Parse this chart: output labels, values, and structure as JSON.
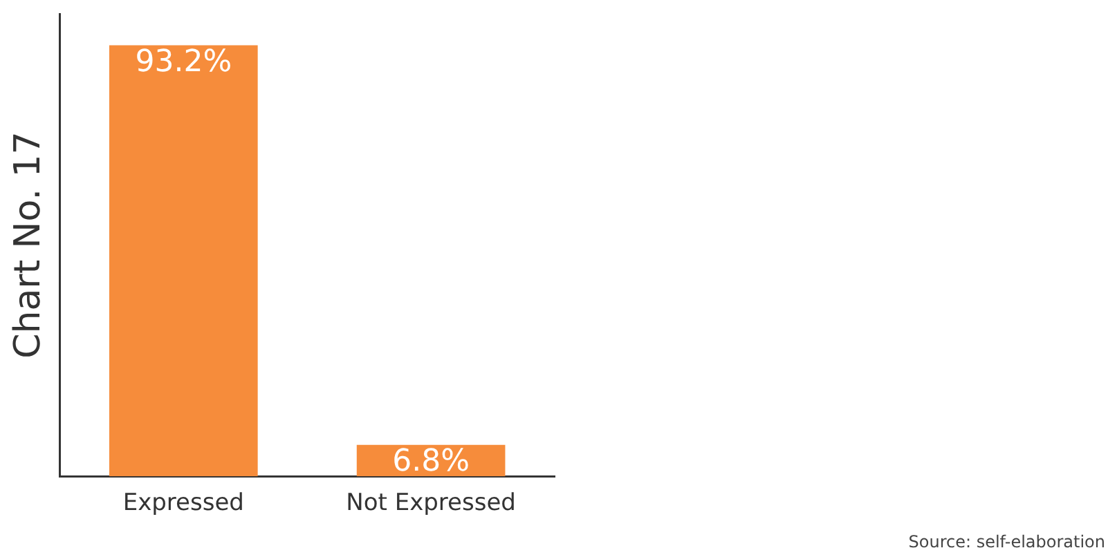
{
  "chart_data": {
    "type": "bar",
    "ylabel": "Chart No. 17",
    "categories": [
      "Expressed",
      "Not Expressed"
    ],
    "values": [
      93.2,
      6.8
    ],
    "value_labels": [
      "93.2%",
      "6.8%"
    ],
    "color": "#f68c3b",
    "grid": false,
    "legend": false,
    "tick_labels": "x",
    "annotations": [
      "Source: self-elaboration"
    ]
  }
}
